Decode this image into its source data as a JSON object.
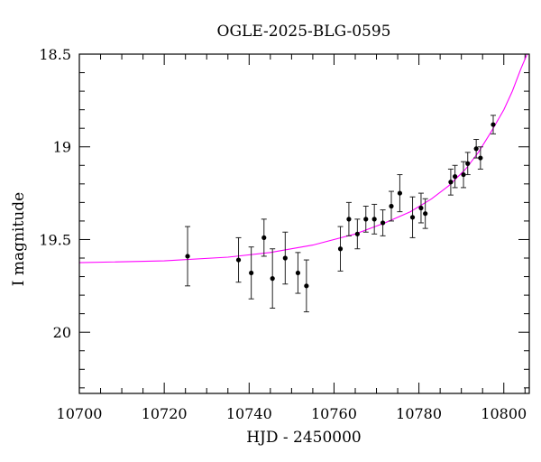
{
  "chart_data": {
    "type": "scatter",
    "title": "OGLE-2025-BLG-0595",
    "xlabel": "HJD - 2450000",
    "ylabel": "I magnitude",
    "xlim": [
      10700,
      10806
    ],
    "ylim": [
      18.5,
      20.33
    ],
    "y_inverted": true,
    "xticks": [
      10700,
      10720,
      10740,
      10760,
      10780,
      10800
    ],
    "yticks": [
      18.5,
      19,
      19.5,
      20
    ],
    "xtick_labels": [
      "10700",
      "10720",
      "10740",
      "10760",
      "10780",
      "10800"
    ],
    "ytick_labels": [
      "18.5",
      "19",
      "19.5",
      "20"
    ],
    "grid": false,
    "series": [
      {
        "kind": "points_with_errorbars",
        "color": "#000000",
        "points": [
          {
            "x": 10725.5,
            "y": 19.59,
            "err": 0.16
          },
          {
            "x": 10737.5,
            "y": 19.61,
            "err": 0.12
          },
          {
            "x": 10740.5,
            "y": 19.68,
            "err": 0.14
          },
          {
            "x": 10743.5,
            "y": 19.49,
            "err": 0.1
          },
          {
            "x": 10745.5,
            "y": 19.71,
            "err": 0.16
          },
          {
            "x": 10748.5,
            "y": 19.6,
            "err": 0.14
          },
          {
            "x": 10751.5,
            "y": 19.68,
            "err": 0.11
          },
          {
            "x": 10753.5,
            "y": 19.75,
            "err": 0.14
          },
          {
            "x": 10761.5,
            "y": 19.55,
            "err": 0.12
          },
          {
            "x": 10763.5,
            "y": 19.39,
            "err": 0.09
          },
          {
            "x": 10765.5,
            "y": 19.47,
            "err": 0.08
          },
          {
            "x": 10767.5,
            "y": 19.39,
            "err": 0.07
          },
          {
            "x": 10769.5,
            "y": 19.39,
            "err": 0.08
          },
          {
            "x": 10771.5,
            "y": 19.41,
            "err": 0.07
          },
          {
            "x": 10773.5,
            "y": 19.32,
            "err": 0.08
          },
          {
            "x": 10775.5,
            "y": 19.25,
            "err": 0.1
          },
          {
            "x": 10778.5,
            "y": 19.38,
            "err": 0.11
          },
          {
            "x": 10780.5,
            "y": 19.33,
            "err": 0.08
          },
          {
            "x": 10781.5,
            "y": 19.36,
            "err": 0.08
          },
          {
            "x": 10787.5,
            "y": 19.19,
            "err": 0.07
          },
          {
            "x": 10788.5,
            "y": 19.16,
            "err": 0.06
          },
          {
            "x": 10790.5,
            "y": 19.15,
            "err": 0.07
          },
          {
            "x": 10791.5,
            "y": 19.09,
            "err": 0.06
          },
          {
            "x": 10793.5,
            "y": 19.01,
            "err": 0.05
          },
          {
            "x": 10794.5,
            "y": 19.06,
            "err": 0.06
          },
          {
            "x": 10797.5,
            "y": 18.88,
            "err": 0.05
          }
        ]
      },
      {
        "kind": "model_curve",
        "color": "#ff00ff",
        "points": [
          {
            "x": 10700,
            "y": 19.625
          },
          {
            "x": 10720,
            "y": 19.615
          },
          {
            "x": 10735,
            "y": 19.595
          },
          {
            "x": 10745,
            "y": 19.57
          },
          {
            "x": 10755,
            "y": 19.53
          },
          {
            "x": 10765,
            "y": 19.47
          },
          {
            "x": 10772,
            "y": 19.41
          },
          {
            "x": 10778,
            "y": 19.35
          },
          {
            "x": 10783,
            "y": 19.28
          },
          {
            "x": 10787,
            "y": 19.21
          },
          {
            "x": 10791,
            "y": 19.12
          },
          {
            "x": 10794,
            "y": 19.03
          },
          {
            "x": 10797,
            "y": 18.92
          },
          {
            "x": 10800,
            "y": 18.8
          },
          {
            "x": 10802,
            "y": 18.7
          },
          {
            "x": 10804,
            "y": 18.58
          },
          {
            "x": 10805.5,
            "y": 18.5
          }
        ]
      }
    ]
  }
}
